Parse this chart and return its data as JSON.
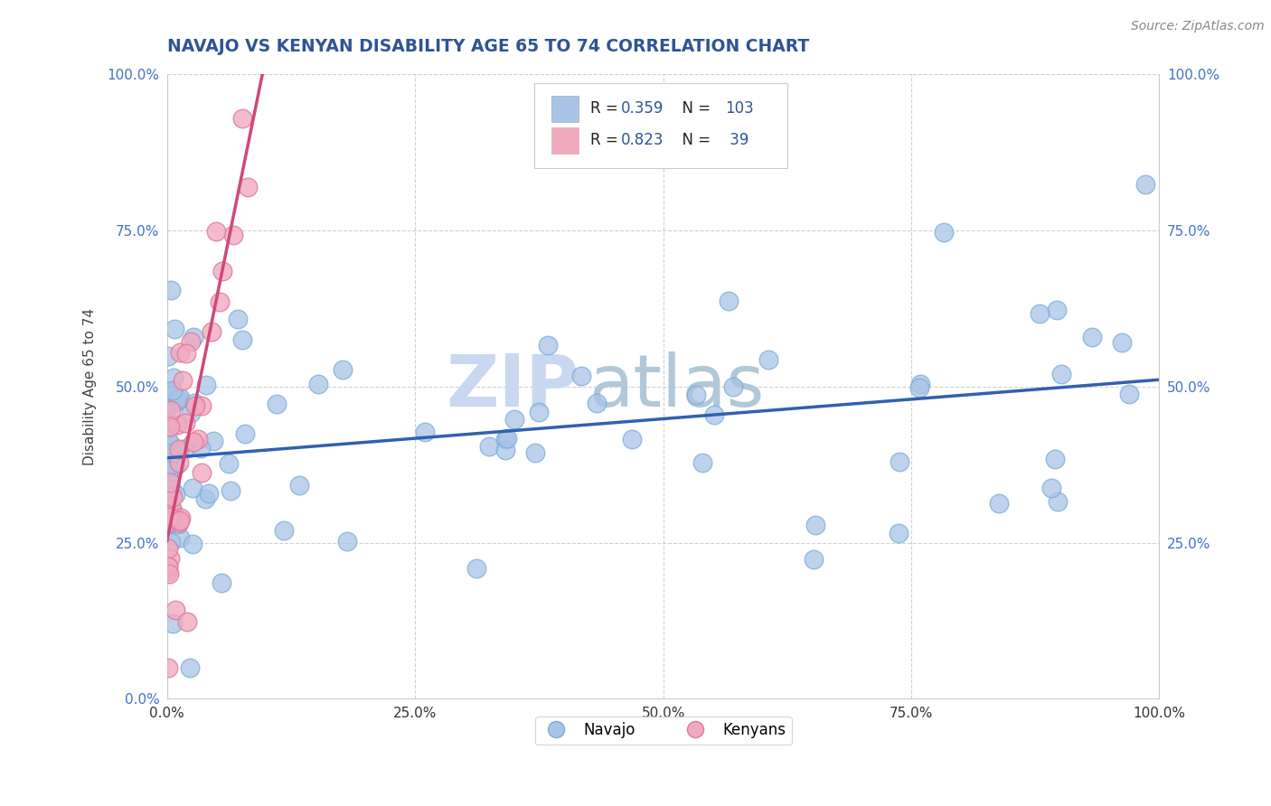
{
  "title": "NAVAJO VS KENYAN DISABILITY AGE 65 TO 74 CORRELATION CHART",
  "source_text": "Source: ZipAtlas.com",
  "ylabel": "Disability Age 65 to 74",
  "navajo_R": 0.359,
  "navajo_N": 103,
  "kenyan_R": 0.823,
  "kenyan_N": 39,
  "navajo_color": "#a8c4e8",
  "navajo_edge": "#7aadd4",
  "kenyan_color": "#f0aac0",
  "kenyan_edge": "#e07898",
  "navajo_line_color": "#3060b0",
  "kenyan_line_color": "#d04878",
  "title_color": "#2F5496",
  "rn_label_color": "#2F5496",
  "watermark_zip_color": "#c8d8f0",
  "watermark_atlas_color": "#b0c8d8",
  "background_color": "#ffffff",
  "grid_color": "#cccccc",
  "right_tick_color": "#4472c4",
  "source_color": "#888888"
}
